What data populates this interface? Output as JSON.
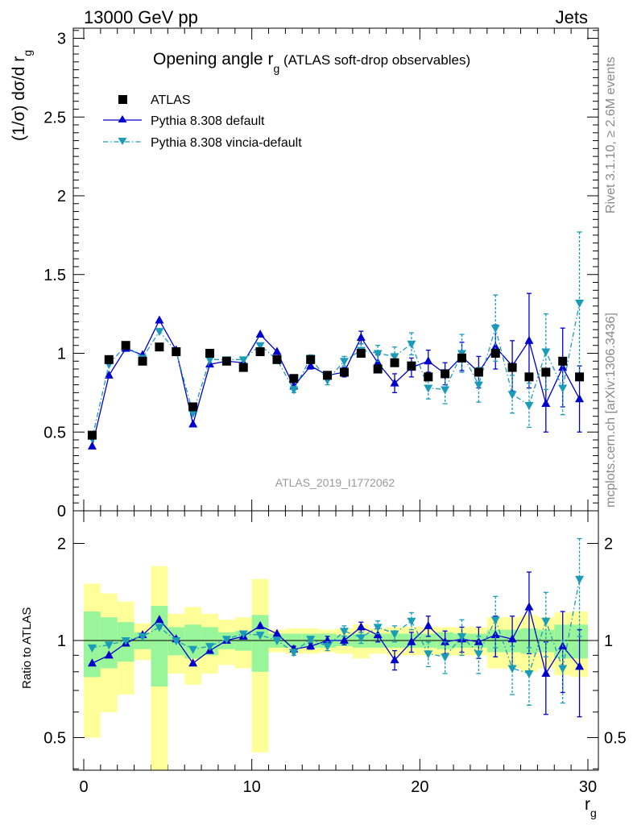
{
  "header": {
    "left": "13000 GeV pp",
    "right": "Jets"
  },
  "side_labels": {
    "rivet": "Rivet 3.1.10, ≥ 2.6M events",
    "mcplots": "mcplots.cern.ch [arXiv:1306.3436]"
  },
  "chart_data": {
    "type": "scatter",
    "title": "Opening angle r",
    "title_sub": "g",
    "title_suffix": "(ATLAS soft-drop observables)",
    "ylabel": "(1/σ) dσ/d r",
    "ylabel_sub": "g",
    "xlabel": "r",
    "xlabel_sub": "g",
    "ratio_ylabel": "Ratio to ATLAS",
    "watermark": "ATLAS_2019_I1772062",
    "xlim": [
      -1,
      31
    ],
    "ylim": [
      0,
      3.05
    ],
    "ratio_ylim": [
      0.34,
      2.3
    ],
    "ratio_log": true,
    "x_ticks": [
      0,
      10,
      20,
      30
    ],
    "y_ticks": [
      0,
      0.5,
      1,
      1.5,
      2,
      2.5,
      3
    ],
    "y_tick_labels": [
      "0",
      "0.5",
      "1",
      "1.5",
      "2",
      "2.5",
      "3"
    ],
    "ratio_ticks": [
      0.5,
      1,
      2
    ],
    "ratio_tick_labels": [
      "0.5",
      "1",
      "2"
    ],
    "legend_position": "top-left",
    "colors": {
      "data": "#000000",
      "default": "#0000cc",
      "vincia": "#1a9bb8",
      "band_inner": "#99f599",
      "band_outer": "#ffff99"
    },
    "x": [
      0.5,
      1.5,
      2.5,
      3.5,
      4.5,
      5.5,
      6.5,
      7.5,
      8.5,
      9.5,
      10.5,
      11.5,
      12.5,
      13.5,
      14.5,
      15.5,
      16.5,
      17.5,
      18.5,
      19.5,
      20.5,
      21.5,
      22.5,
      23.5,
      24.5,
      25.5,
      26.5,
      27.5,
      28.5,
      29.5
    ],
    "data": {
      "name": "ATLAS",
      "values": [
        0.48,
        0.96,
        1.05,
        0.95,
        1.04,
        1.01,
        0.66,
        1.0,
        0.95,
        0.91,
        1.01,
        0.96,
        0.84,
        0.96,
        0.86,
        0.88,
        1.0,
        0.9,
        0.94,
        0.92,
        0.85,
        0.87,
        0.97,
        0.88,
        1.0,
        0.91,
        0.85,
        0.88,
        0.95,
        0.85
      ],
      "band_inner": [
        0.23,
        0.18,
        0.14,
        0.06,
        0.28,
        0.1,
        0.12,
        0.1,
        0.06,
        0.07,
        0.2,
        0.05,
        0.05,
        0.05,
        0.05,
        0.04,
        0.05,
        0.05,
        0.05,
        0.05,
        0.05,
        0.06,
        0.05,
        0.05,
        0.08,
        0.08,
        0.09,
        0.08,
        0.12,
        0.12
      ],
      "band_outer": [
        0.5,
        0.4,
        0.32,
        0.13,
        0.7,
        0.21,
        0.27,
        0.21,
        0.16,
        0.18,
        0.55,
        0.08,
        0.09,
        0.09,
        0.08,
        0.09,
        0.12,
        0.09,
        0.1,
        0.1,
        0.1,
        0.1,
        0.1,
        0.1,
        0.18,
        0.18,
        0.2,
        0.18,
        0.22,
        0.23
      ]
    },
    "series": [
      {
        "name": "Pythia 8.308 default",
        "values": [
          0.41,
          0.86,
          1.03,
          0.99,
          1.21,
          1.02,
          0.55,
          0.93,
          0.95,
          0.94,
          1.12,
          1.01,
          0.79,
          0.92,
          0.86,
          0.88,
          1.1,
          0.94,
          0.81,
          0.91,
          0.95,
          0.87,
          0.98,
          0.88,
          1.04,
          0.92,
          1.08,
          0.68,
          0.91,
          0.71
        ],
        "errors": [
          0.01,
          0.01,
          0.01,
          0.01,
          0.01,
          0.01,
          0.01,
          0.01,
          0.01,
          0.01,
          0.01,
          0.01,
          0.01,
          0.02,
          0.02,
          0.03,
          0.04,
          0.05,
          0.06,
          0.06,
          0.07,
          0.07,
          0.09,
          0.1,
          0.14,
          0.16,
          0.3,
          0.18,
          0.25,
          0.21
        ],
        "ratio": [
          0.85,
          0.9,
          0.98,
          1.04,
          1.16,
          1.01,
          0.85,
          0.93,
          1.0,
          1.03,
          1.11,
          1.05,
          0.94,
          0.96,
          1.0,
          1.0,
          1.1,
          1.04,
          0.87,
          0.99,
          1.11,
          0.99,
          1.01,
          0.99,
          1.04,
          1.01,
          1.27,
          0.79,
          0.96,
          0.83
        ],
        "ratio_errors": [
          0.01,
          0.01,
          0.01,
          0.01,
          0.01,
          0.01,
          0.01,
          0.01,
          0.01,
          0.01,
          0.01,
          0.01,
          0.02,
          0.02,
          0.03,
          0.03,
          0.04,
          0.05,
          0.06,
          0.07,
          0.08,
          0.08,
          0.09,
          0.11,
          0.15,
          0.18,
          0.36,
          0.2,
          0.27,
          0.25
        ]
      },
      {
        "name": "Pythia 8.308 vincia-default",
        "values": [
          0.46,
          0.93,
          1.05,
          0.97,
          1.14,
          1.01,
          0.62,
          0.96,
          0.96,
          0.96,
          1.05,
          0.96,
          0.77,
          0.97,
          0.83,
          0.95,
          1.02,
          1.0,
          0.98,
          1.06,
          0.78,
          0.77,
          1.0,
          0.8,
          1.16,
          0.74,
          0.67,
          1.01,
          0.78,
          1.32
        ],
        "errors": [
          0.01,
          0.01,
          0.01,
          0.01,
          0.01,
          0.01,
          0.01,
          0.01,
          0.01,
          0.01,
          0.01,
          0.01,
          0.02,
          0.02,
          0.03,
          0.03,
          0.04,
          0.05,
          0.06,
          0.07,
          0.07,
          0.09,
          0.12,
          0.11,
          0.21,
          0.12,
          0.14,
          0.24,
          0.17,
          0.45
        ],
        "ratio": [
          0.95,
          0.97,
          1.0,
          1.03,
          1.1,
          1.0,
          0.94,
          0.96,
          1.01,
          1.05,
          1.04,
          1.0,
          0.92,
          1.01,
          0.96,
          1.07,
          1.02,
          1.1,
          1.05,
          1.15,
          0.91,
          0.89,
          1.03,
          0.91,
          1.16,
          0.82,
          0.79,
          1.15,
          0.82,
          1.55
        ],
        "ratio_errors": [
          0.01,
          0.01,
          0.01,
          0.01,
          0.01,
          0.01,
          0.01,
          0.01,
          0.01,
          0.01,
          0.01,
          0.01,
          0.02,
          0.02,
          0.03,
          0.04,
          0.04,
          0.05,
          0.06,
          0.07,
          0.08,
          0.1,
          0.13,
          0.12,
          0.21,
          0.14,
          0.16,
          0.26,
          0.18,
          0.52
        ]
      }
    ]
  }
}
